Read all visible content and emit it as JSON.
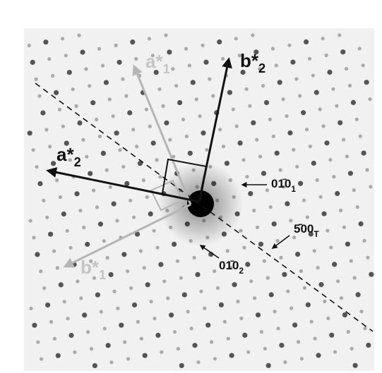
{
  "labels": [
    {
      "main": "a*",
      "sub": "1"
    },
    {
      "main": "b*",
      "sub": "2"
    },
    {
      "main": "a*",
      "sub": "2"
    },
    {
      "main": "b*",
      "sub": "1"
    },
    {
      "main": "01̄0",
      "sub": "1"
    },
    {
      "main": "01̄0",
      "sub": "2"
    },
    {
      "main": "5̄00",
      "sub": "T"
    }
  ]
}
